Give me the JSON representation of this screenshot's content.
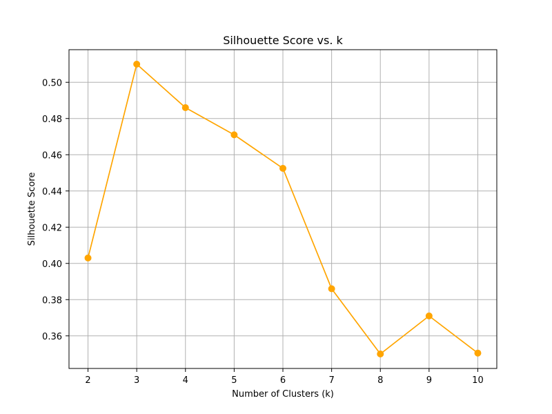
{
  "chart_data": {
    "type": "line",
    "title": "Silhouette Score vs. k",
    "xlabel": "Number of Clusters (k)",
    "ylabel": "Silhouette Score",
    "x": [
      2,
      3,
      4,
      5,
      6,
      7,
      8,
      9,
      10
    ],
    "series": [
      {
        "values": [
          0.403,
          0.51,
          0.486,
          0.471,
          0.4525,
          0.386,
          0.35,
          0.371,
          0.3505
        ],
        "color": "#ffa500",
        "marker": "circle"
      }
    ],
    "xticks": [
      "2",
      "3",
      "4",
      "5",
      "6",
      "7",
      "8",
      "9",
      "10"
    ],
    "yticks": [
      "0.36",
      "0.38",
      "0.40",
      "0.42",
      "0.44",
      "0.46",
      "0.48",
      "0.50"
    ],
    "xlim": [
      1.61,
      10.39
    ],
    "ylim": [
      0.342,
      0.518
    ],
    "grid": true,
    "colors": {
      "line": "#ffa500",
      "grid": "#b0b0b0",
      "axes": "#000000"
    }
  }
}
